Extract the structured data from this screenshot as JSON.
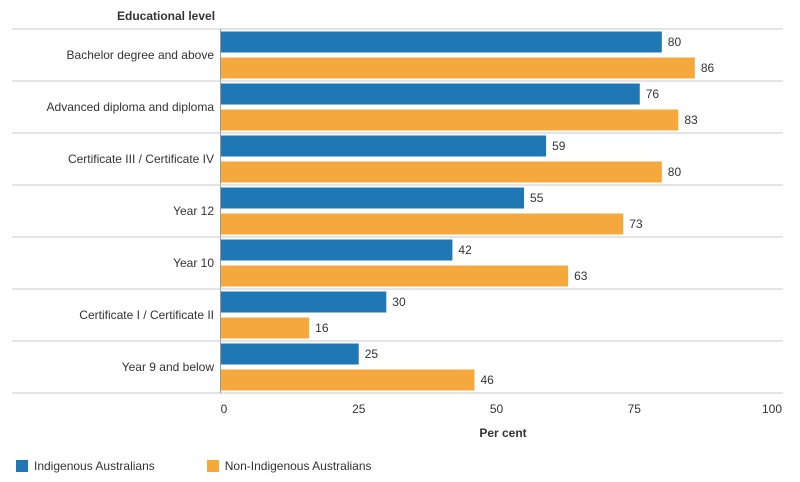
{
  "chart_data": {
    "type": "bar",
    "orientation": "horizontal",
    "ylabel": "Educational level",
    "xlabel": "Per cent",
    "categories": [
      "Bachelor degree and above",
      "Advanced diploma and diploma",
      "Certificate III / Certificate IV",
      "Year 12",
      "Year 10",
      "Certificate I / Certificate II",
      "Year 9 and below"
    ],
    "series": [
      {
        "name": "Indigenous Australians",
        "color": "#1f77b4",
        "values": [
          80,
          76,
          59,
          55,
          42,
          30,
          25
        ]
      },
      {
        "name": "Non-Indigenous Australians",
        "color": "#f5a93d",
        "values": [
          86,
          83,
          80,
          73,
          63,
          16,
          46
        ]
      }
    ],
    "xlim": [
      0,
      100
    ],
    "xticks": [
      "0",
      "25",
      "50",
      "75",
      "100"
    ],
    "grid": false,
    "legend_position": "bottom-left"
  }
}
